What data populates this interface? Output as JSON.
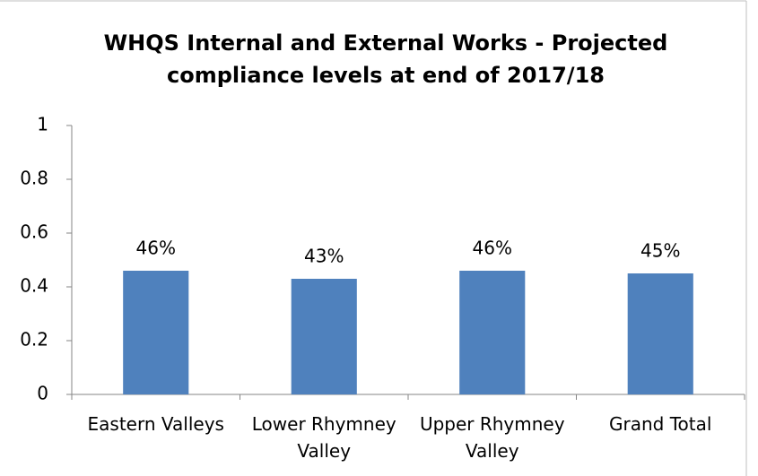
{
  "chart_data": {
    "type": "bar",
    "title": "WHQS Internal and External Works - Projected compliance levels at end of 2017/18",
    "categories": [
      "Eastern Valleys",
      "Lower Rhymney Valley",
      "Upper Rhymney Valley",
      "Grand Total"
    ],
    "values": [
      0.46,
      0.43,
      0.46,
      0.45
    ],
    "value_labels": [
      "46%",
      "43%",
      "46%",
      "45%"
    ],
    "color": "#4f81bd",
    "ylim": [
      0,
      1
    ],
    "yticks": [
      0,
      0.2,
      0.4,
      0.6,
      0.8,
      1
    ],
    "grid": false
  }
}
